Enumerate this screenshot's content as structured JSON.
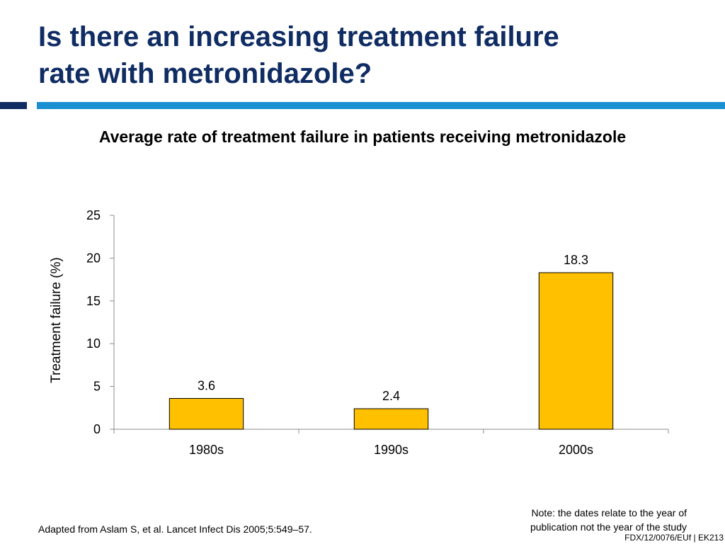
{
  "slide": {
    "title_line1": "Is there an increasing treatment failure",
    "title_line2": "rate with metronidazole?",
    "subtitle": "Average rate of treatment failure in patients receiving metronidazole",
    "footnote": "Adapted from Aslam S, et al. Lancet Infect Dis 2005;5:549–57.",
    "note_line1": "Note: the dates relate to the year of",
    "note_line2": "publication not the year of the study",
    "code": "FDX/12/0076/EUf | EK213",
    "colors": {
      "title": "#0f2c63",
      "rule_dark": "#0f2c63",
      "rule_light": "#1a8fd1",
      "bar_fill": "#ffc000",
      "bar_stroke": "#000000"
    }
  },
  "chart_data": {
    "type": "bar",
    "categories": [
      "1980s",
      "1990s",
      "2000s"
    ],
    "values": [
      3.6,
      2.4,
      18.3
    ],
    "value_labels": [
      "3.6",
      "2.4",
      "18.3"
    ],
    "ylabel": "Treatment failure (%)",
    "xlabel": "",
    "ylim": [
      0,
      25
    ],
    "yticks": [
      0,
      5,
      10,
      15,
      20,
      25
    ],
    "grid": false,
    "legend": "none"
  }
}
